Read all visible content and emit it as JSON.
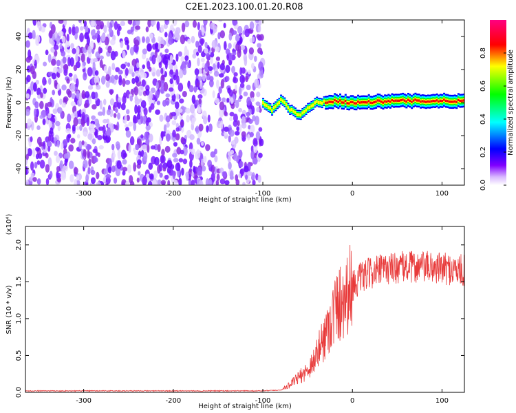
{
  "title": "C2E1.2023.100.01.20.R08",
  "chart_data": [
    {
      "type": "heatmap",
      "name": "spectrogram",
      "xlabel": "Height of straight line (km)",
      "ylabel": "Frequency (Hz)",
      "xlim": [
        -365,
        125
      ],
      "ylim": [
        -50,
        50
      ],
      "xticks": [
        -300,
        -200,
        -100,
        0,
        100
      ],
      "yticks": [
        -40,
        -20,
        0,
        20,
        40
      ],
      "grid": false,
      "colorbar": {
        "label": "Normalized spectral amplitude",
        "range": [
          0,
          1
        ],
        "ticks": [
          "0.0",
          "0.2",
          "0.4",
          "0.6",
          "0.8"
        ],
        "colors": [
          "#ffffff",
          "#c8a8ff",
          "#8000ff",
          "#0000ff",
          "#00ffff",
          "#00ff00",
          "#ffff00",
          "#ff0000",
          "#ff0080"
        ]
      },
      "regions": [
        {
          "x_range": [
            -365,
            -100
          ],
          "y_range": [
            -50,
            50
          ],
          "amplitude": 0.1,
          "description_color": "#8a2be2"
        },
        {
          "x_range": [
            -100,
            125
          ],
          "y_center": 0,
          "amplitude_max": 1.0
        }
      ],
      "ridge": [
        {
          "x": -100,
          "y": 0
        },
        {
          "x": -90,
          "y": -5
        },
        {
          "x": -80,
          "y": 2
        },
        {
          "x": -70,
          "y": -4
        },
        {
          "x": -60,
          "y": -8
        },
        {
          "x": -50,
          "y": -3
        },
        {
          "x": -40,
          "y": 0
        },
        {
          "x": -20,
          "y": 1
        },
        {
          "x": 0,
          "y": 0
        },
        {
          "x": 50,
          "y": 1
        },
        {
          "x": 100,
          "y": 1
        },
        {
          "x": 125,
          "y": 1
        }
      ]
    },
    {
      "type": "line",
      "name": "snr",
      "xlabel": "Height of straight line (km)",
      "ylabel": "SNR (10 * v/v)",
      "yscale_label": "(x10⁴)",
      "xlim": [
        -365,
        125
      ],
      "ylim": [
        0,
        2.25
      ],
      "xticks": [
        -300,
        -200,
        -100,
        0,
        100
      ],
      "yticks": [
        "0.0",
        "0.5",
        "1.0",
        "1.5",
        "2.0"
      ],
      "grid": false,
      "color": "#e83a3a",
      "series": [
        {
          "values": [
            [
              -365,
              0.02
            ],
            [
              -300,
              0.02
            ],
            [
              -200,
              0.02
            ],
            [
              -100,
              0.02
            ],
            [
              -80,
              0.03
            ],
            [
              -70,
              0.1
            ],
            [
              -60,
              0.2
            ],
            [
              -50,
              0.3
            ],
            [
              -40,
              0.5
            ],
            [
              -30,
              0.8
            ],
            [
              -20,
              1.1
            ],
            [
              -10,
              1.3
            ],
            [
              0,
              1.45
            ],
            [
              10,
              1.55
            ],
            [
              20,
              1.62
            ],
            [
              40,
              1.68
            ],
            [
              60,
              1.7
            ],
            [
              80,
              1.7
            ],
            [
              100,
              1.68
            ],
            [
              125,
              1.65
            ]
          ]
        }
      ]
    }
  ]
}
